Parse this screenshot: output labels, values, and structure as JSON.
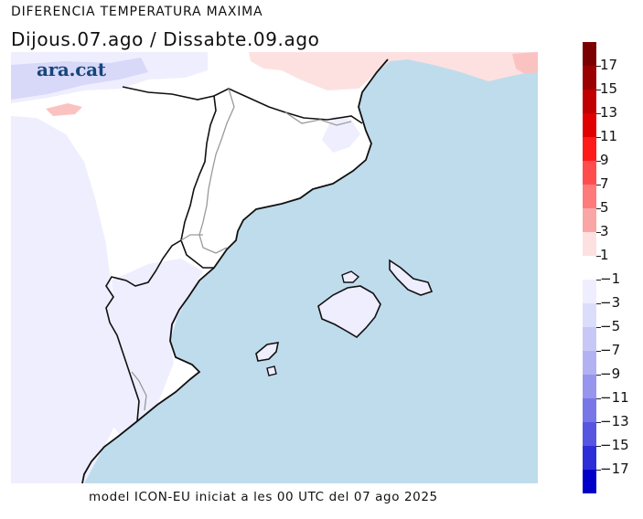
{
  "header": {
    "title": "DIFERENCIA TEMPERATURA MAXIMA",
    "subtitle": "Dijous.07.ago / Dissabte.09.ago"
  },
  "logo": {
    "text": "ara.cat"
  },
  "footer": {
    "text": "model ICON-EU iniciat a les 00 UTC del 07 ago 2025"
  },
  "map": {
    "sea_color": "#bfdcec",
    "land_color": "#ffffff",
    "cool_light_color": "#eeeefe",
    "cool_mid_color": "#d8d8f9",
    "warm_light_color": "#fde1e1",
    "warm_mid_color": "#fbc2c2",
    "coast_color": "#111111",
    "border_color": "#9a9a9a"
  },
  "legend": {
    "bins": [
      {
        "color": "#7a0000"
      },
      {
        "color": "#9a0000"
      },
      {
        "color": "#c00000"
      },
      {
        "color": "#e00000"
      },
      {
        "color": "#ff1a1a"
      },
      {
        "color": "#ff4d4d"
      },
      {
        "color": "#ff7a7a"
      },
      {
        "color": "#fba6a6"
      },
      {
        "color": "#fde1e1"
      },
      {
        "color": "#ffffff"
      },
      {
        "color": "#eeeefe"
      },
      {
        "color": "#dcdcfb"
      },
      {
        "color": "#c8c8f7"
      },
      {
        "color": "#b2b2f3"
      },
      {
        "color": "#9696ee"
      },
      {
        "color": "#7777e8"
      },
      {
        "color": "#5656e1"
      },
      {
        "color": "#2e2ed9"
      },
      {
        "color": "#0000c8"
      }
    ],
    "labels": [
      "17",
      "15",
      "13",
      "11",
      "9",
      "7",
      "5",
      "3",
      "1",
      "−1",
      "−3",
      "−5",
      "−7",
      "−9",
      "−11",
      "−13",
      "−15",
      "−17"
    ]
  }
}
